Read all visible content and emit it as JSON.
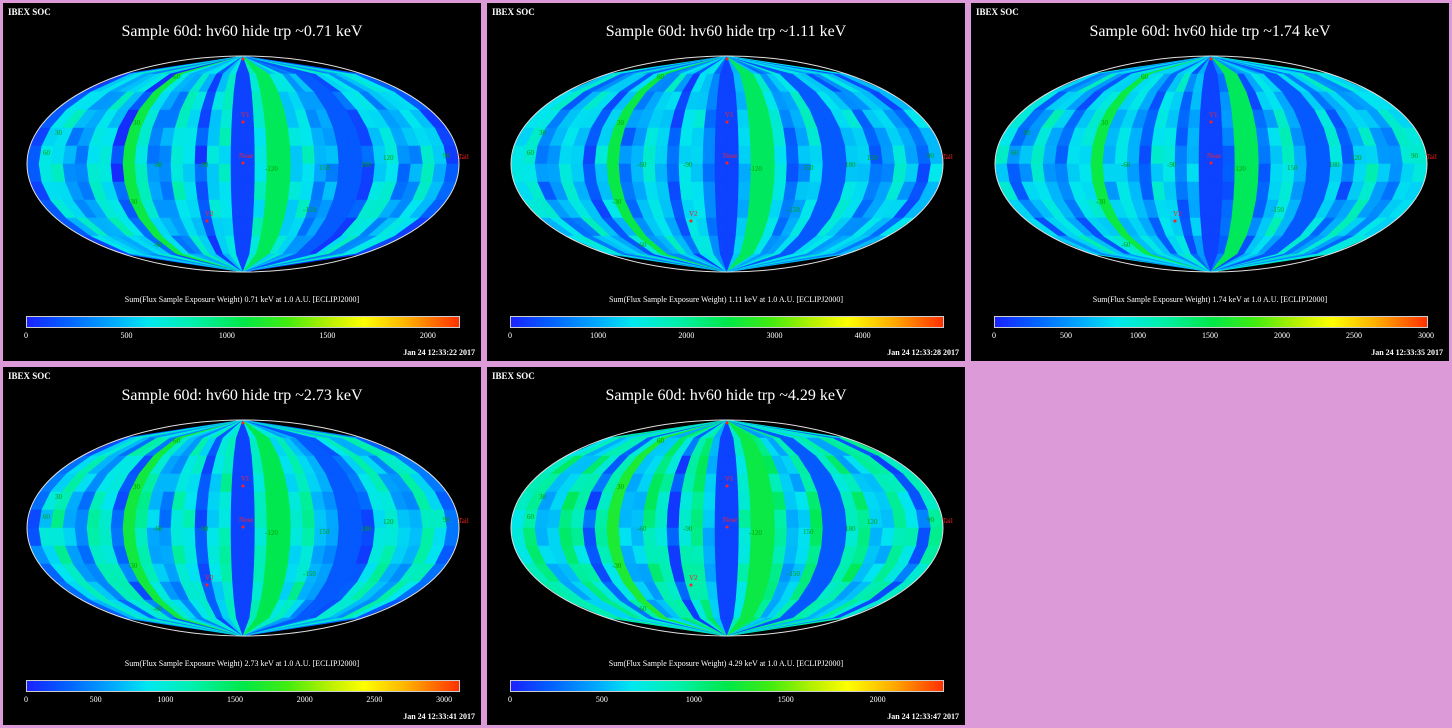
{
  "header_label": "IBEX SOC",
  "caption_prefix": "Sum(Flux Sample Exposure Weight)",
  "map_labels": {
    "v1": "V1",
    "v2": "V2",
    "nose": "Nose",
    "tail": "Tail",
    "grid": [
      "60",
      "30",
      "-90",
      "-60",
      "-120",
      "150",
      "180",
      "-150",
      "120",
      "90",
      "-30",
      "-60",
      "60",
      "30"
    ]
  },
  "panels": [
    {
      "title": "Sample 60d: hv60 hide trp ~0.71 keV",
      "caption": "Sum(Flux Sample Exposure Weight)  0.71 keV at 1.0 A.U. [ECLIPJ2000]",
      "timestamp": "Jan 24 12:33:22 2017",
      "colorbar": {
        "min": 0,
        "max": 2150,
        "ticks": [
          "0",
          "500",
          "1000",
          "1500",
          "2000"
        ],
        "tick_values": [
          0,
          500,
          1000,
          1500,
          2000
        ]
      },
      "intensity": 0.45
    },
    {
      "title": "Sample 60d: hv60 hide trp ~1.11 keV",
      "caption": "Sum(Flux Sample Exposure Weight)  1.11 keV at 1.0 A.U. [ECLIPJ2000]",
      "timestamp": "Jan 24 12:33:28 2017",
      "colorbar": {
        "min": 0,
        "max": 4900,
        "ticks": [
          "0",
          "1000",
          "2000",
          "3000",
          "4000"
        ],
        "tick_values": [
          0,
          1000,
          2000,
          3000,
          4000
        ]
      },
      "intensity": 0.42
    },
    {
      "title": "Sample 60d: hv60 hide trp ~1.74 keV",
      "caption": "Sum(Flux Sample Exposure Weight)  1.74 keV at 1.0 A.U. [ECLIPJ2000]",
      "timestamp": "Jan 24 12:33:35 2017",
      "colorbar": {
        "min": 0,
        "max": 3000,
        "ticks": [
          "0",
          "500",
          "1000",
          "1500",
          "2000",
          "2500",
          "3000"
        ],
        "tick_values": [
          0,
          500,
          1000,
          1500,
          2000,
          2500,
          3000
        ]
      },
      "intensity": 0.44
    },
    {
      "title": "Sample 60d: hv60 hide trp ~2.73 keV",
      "caption": "Sum(Flux Sample Exposure Weight)  2.73 keV at 1.0 A.U. [ECLIPJ2000]",
      "timestamp": "Jan 24 12:33:41 2017",
      "colorbar": {
        "min": 0,
        "max": 3100,
        "ticks": [
          "0",
          "500",
          "1000",
          "1500",
          "2000",
          "2500",
          "3000"
        ],
        "tick_values": [
          0,
          500,
          1000,
          1500,
          2000,
          2500,
          3000
        ]
      },
      "intensity": 0.5
    },
    {
      "title": "Sample 60d: hv60 hide trp ~4.29 keV",
      "caption": "Sum(Flux Sample Exposure Weight)  4.29 keV at 1.0 A.U. [ECLIPJ2000]",
      "timestamp": "Jan 24 12:33:47 2017",
      "colorbar": {
        "min": 0,
        "max": 2350,
        "ticks": [
          "0",
          "500",
          "1000",
          "1500",
          "2000"
        ],
        "tick_values": [
          0,
          500,
          1000,
          1500,
          2000
        ]
      },
      "intensity": 0.58
    }
  ],
  "colors": {
    "background": "#dd9ad8",
    "panel": "#000000",
    "grid_label": "#00a000",
    "marker": "#ff2020"
  }
}
